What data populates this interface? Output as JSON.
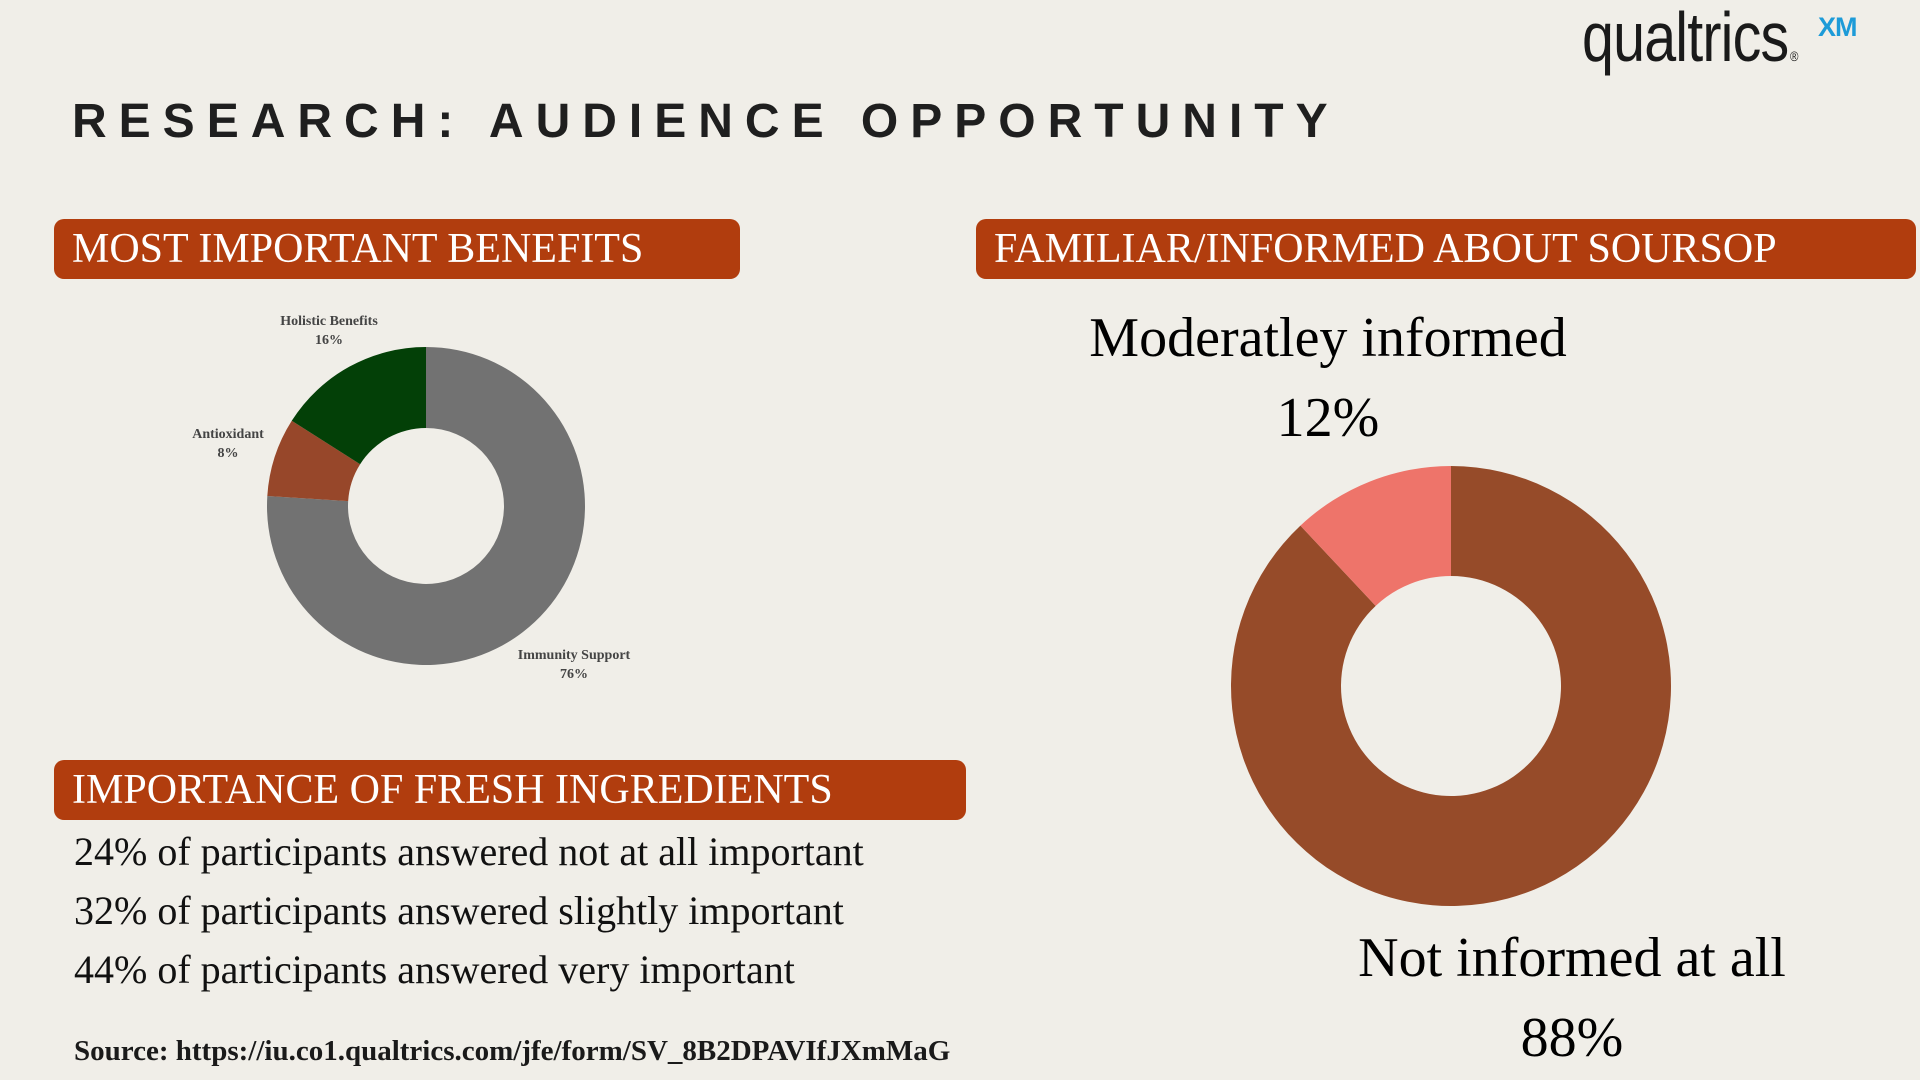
{
  "logo": {
    "brand": "qualtrics",
    "reg": "®",
    "suffix": "XM"
  },
  "title": "RESEARCH: AUDIENCE OPPORTUNITY",
  "benefits": {
    "heading": "MOST IMPORTANT BENEFITS"
  },
  "familiar": {
    "heading": "FAMILIAR/INFORMED ABOUT  SOURSOP"
  },
  "fresh": {
    "heading": "IMPORTANCE OF FRESH INGREDIENTS",
    "lines": [
      "24% of participants answered not at all important",
      "32% of participants answered slightly important",
      "44% of participants answered very important"
    ]
  },
  "source": "Source: https://iu.co1.qualtrics.com/jfe/form/SV_8B2DPAVIfJXmMaG",
  "chart_data": [
    {
      "type": "pie",
      "subtype": "donut",
      "title": "MOST IMPORTANT BENEFITS",
      "categories": [
        "Immunity Support",
        "Antioxidant",
        "Holistic Benefits"
      ],
      "values": [
        76,
        8,
        16
      ],
      "value_labels": [
        "76%",
        "8%",
        "16%"
      ],
      "colors": [
        "#727272",
        "#97472a",
        "#034007"
      ],
      "start_angle_deg": 0,
      "direction": "clockwise"
    },
    {
      "type": "pie",
      "subtype": "donut",
      "title": "FAMILIAR/INFORMED ABOUT  SOURSOP",
      "categories": [
        "Not informed at all",
        "Moderatley informed"
      ],
      "values": [
        88,
        12
      ],
      "value_labels": [
        "88%",
        "12%"
      ],
      "colors": [
        "#964b29",
        "#ee746a"
      ],
      "start_angle_deg": 0,
      "direction": "clockwise"
    }
  ]
}
